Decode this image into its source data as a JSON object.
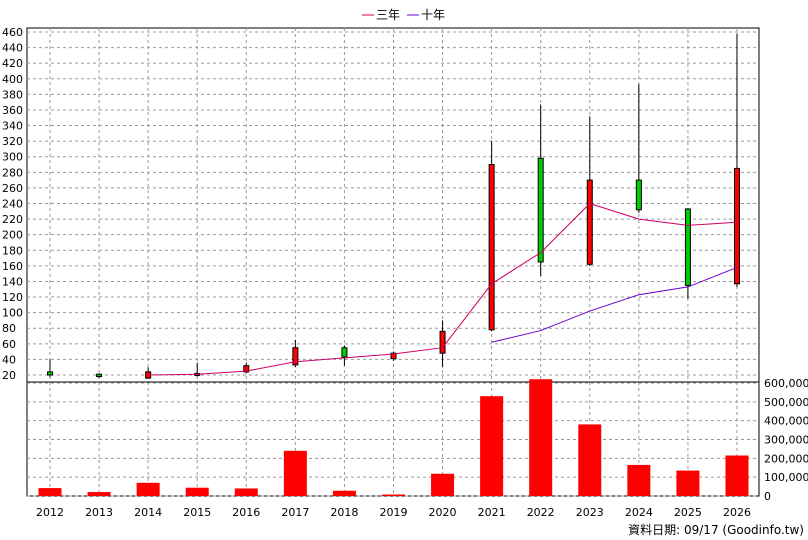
{
  "chart_data": [
    {
      "type": "candlestick",
      "legend": [
        {
          "name": "三年",
          "color": "#cc0066"
        },
        {
          "name": "十年",
          "color": "#6600cc"
        }
      ],
      "y_ticks": [
        20,
        40,
        60,
        80,
        100,
        120,
        140,
        160,
        180,
        200,
        220,
        240,
        260,
        280,
        300,
        320,
        340,
        360,
        380,
        400,
        420,
        440,
        460
      ],
      "ylim": [
        10,
        462
      ],
      "categories": [
        "2012",
        "2013",
        "2014",
        "2015",
        "2016",
        "2017",
        "2018",
        "2019",
        "2020",
        "2021",
        "2022",
        "2023",
        "2024",
        "2025",
        "2026"
      ],
      "candles": [
        {
          "year": "2012",
          "open": 20,
          "close": 24,
          "high": 40,
          "low": 17,
          "color": "#00cc00"
        },
        {
          "year": "2013",
          "open": 18,
          "close": 21,
          "high": 22,
          "low": 16,
          "color": "#00cc00"
        },
        {
          "year": "2014",
          "open": 24,
          "close": 16,
          "high": 30,
          "low": 15,
          "color": "#ff0000"
        },
        {
          "year": "2015",
          "open": 22,
          "close": 21,
          "high": 36,
          "low": 18,
          "color": "#ff0000"
        },
        {
          "year": "2016",
          "open": 32,
          "close": 24,
          "high": 36,
          "low": 22,
          "color": "#ff0000"
        },
        {
          "year": "2017",
          "open": 55,
          "close": 33,
          "high": 65,
          "low": 30,
          "color": "#ff0000"
        },
        {
          "year": "2018",
          "open": 43,
          "close": 55,
          "high": 58,
          "low": 32,
          "color": "#00cc00"
        },
        {
          "year": "2019",
          "open": 48,
          "close": 41,
          "high": 50,
          "low": 38,
          "color": "#ff0000"
        },
        {
          "year": "2020",
          "open": 76,
          "close": 48,
          "high": 90,
          "low": 30,
          "color": "#ff0000"
        },
        {
          "year": "2021",
          "open": 290,
          "close": 78,
          "high": 320,
          "low": 76,
          "color": "#ff0000"
        },
        {
          "year": "2022",
          "open": 165,
          "close": 298,
          "high": 367,
          "low": 147,
          "color": "#00cc00"
        },
        {
          "year": "2023",
          "open": 270,
          "close": 162,
          "high": 352,
          "low": 160,
          "color": "#ff0000"
        },
        {
          "year": "2024",
          "open": 232,
          "close": 270,
          "high": 393,
          "low": 228,
          "color": "#00cc00"
        },
        {
          "year": "2025",
          "open": 135,
          "close": 233,
          "high": 234,
          "low": 118,
          "color": "#00cc00"
        },
        {
          "year": "2026",
          "open": 285,
          "close": 137,
          "high": 458,
          "low": 133,
          "color": "#ff0000"
        }
      ],
      "series": [
        {
          "name": "三年",
          "color": "#cc0066",
          "x": [
            "2014",
            "2015",
            "2016",
            "2017",
            "2018",
            "2019",
            "2020",
            "2021",
            "2022",
            "2023",
            "2024",
            "2025",
            "2026"
          ],
          "values": [
            20,
            21,
            25,
            37,
            42,
            47,
            55,
            137,
            177,
            240,
            220,
            212,
            216
          ]
        },
        {
          "name": "十年",
          "color": "#6600cc",
          "x": [
            "2021",
            "2022",
            "2023",
            "2024",
            "2025",
            "2026"
          ],
          "values": [
            62,
            77,
            102,
            123,
            133,
            158
          ]
        }
      ]
    },
    {
      "type": "bar",
      "y_ticks": [
        0,
        100000,
        200000,
        300000,
        400000,
        500000,
        600000
      ],
      "y_tick_labels": [
        "0",
        "100,000",
        "200,000",
        "300,000",
        "400,000",
        "500,000",
        "600,000"
      ],
      "ylim": [
        0,
        600000
      ],
      "categories": [
        "2012",
        "2013",
        "2014",
        "2015",
        "2016",
        "2017",
        "2018",
        "2019",
        "2020",
        "2021",
        "2022",
        "2023",
        "2024",
        "2025",
        "2026"
      ],
      "values": [
        42000,
        21000,
        70000,
        44000,
        40000,
        240000,
        28000,
        8000,
        118000,
        530000,
        620000,
        380000,
        165000,
        135000,
        215000
      ],
      "color": "#ff0000"
    }
  ],
  "footer": {
    "text": "資料日期: 09/17  (Goodinfo.tw)"
  }
}
